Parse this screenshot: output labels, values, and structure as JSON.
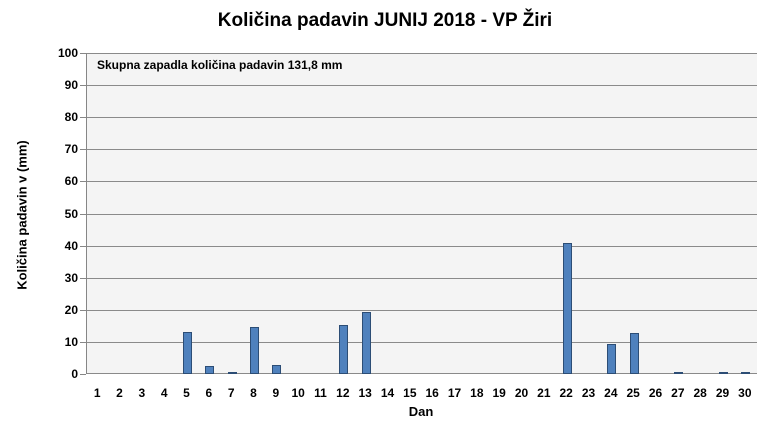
{
  "chart_data": {
    "type": "bar",
    "title": "Količina padavin JUNIJ 2018 - VP Žiri",
    "xlabel": "Dan",
    "ylabel": "Količina padavin v  (mm)",
    "annotation": "Skupna zapadla količina padavin 131,8 mm",
    "ylim": [
      0,
      100
    ],
    "yticks": [
      0,
      10,
      20,
      30,
      40,
      50,
      60,
      70,
      80,
      90,
      100
    ],
    "grid": true,
    "legend": "none",
    "categories": [
      "1",
      "2",
      "3",
      "4",
      "5",
      "6",
      "7",
      "8",
      "9",
      "10",
      "11",
      "12",
      "13",
      "14",
      "15",
      "16",
      "17",
      "18",
      "19",
      "20",
      "21",
      "22",
      "23",
      "24",
      "25",
      "26",
      "27",
      "28",
      "29",
      "30"
    ],
    "values": [
      0,
      0,
      0,
      0,
      13.0,
      2.4,
      0.5,
      14.7,
      2.7,
      0,
      0,
      15.4,
      19.4,
      0,
      0,
      0,
      0,
      0,
      0,
      0,
      0,
      40.8,
      0,
      9.2,
      12.8,
      0,
      0.5,
      0,
      0.2,
      0.2
    ],
    "colors": {
      "bar": "#4f81bd",
      "bar_border": "#2c4d75",
      "plot_bg": "#f4f4f4",
      "grid": "#8a8a8a"
    }
  }
}
